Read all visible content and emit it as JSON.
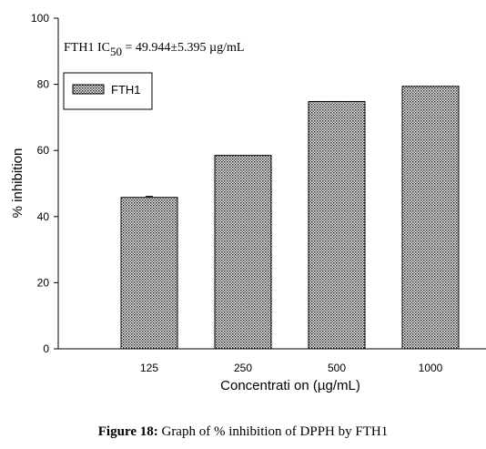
{
  "chart_data": {
    "type": "bar",
    "categories": [
      "125",
      "250",
      "500",
      "1000"
    ],
    "series": [
      {
        "name": "FTH1",
        "values": [
          45.8,
          58.5,
          74.8,
          79.4
        ],
        "errors": [
          0.3,
          0,
          0,
          0
        ]
      }
    ],
    "xlabel": "Concentrati on (µg/mL)",
    "ylabel": "% inhibition",
    "ylim": [
      0,
      100
    ],
    "yticks": [
      0,
      20,
      40,
      60,
      80,
      100
    ],
    "grid": false,
    "legend_position": "top-left",
    "annotation": {
      "prefix": "FTH1 IC",
      "subscript": "50",
      "suffix": " = 49.944±5.395 µg/mL"
    },
    "bar_pattern": "dotted-hatch",
    "bar_color": "#000000"
  },
  "caption": {
    "label": "Figure 18:",
    "text": " Graph of % inhibition of DPPH by FTH1"
  }
}
